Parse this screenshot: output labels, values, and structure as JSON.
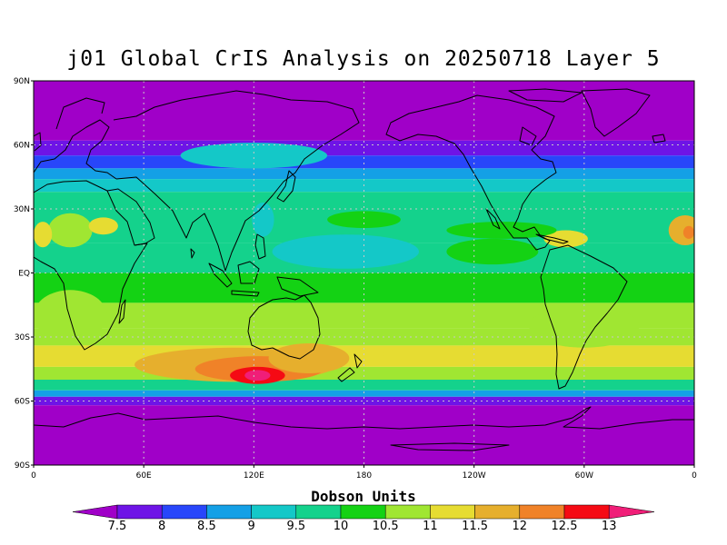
{
  "title": "j01 Global CrIS Analysis on 20250718 Layer 5",
  "colorbar": {
    "title": "Dobson Units",
    "levels": [
      "7.5",
      "8",
      "8.5",
      "9",
      "9.5",
      "10",
      "10.5",
      "11",
      "11.5",
      "12",
      "12.5",
      "13"
    ],
    "colors": [
      "#a000c8",
      "#6e14e6",
      "#2846fa",
      "#14a0e6",
      "#14c8c8",
      "#14d28c",
      "#14d214",
      "#a0e632",
      "#e6dc32",
      "#e6af2d",
      "#f08228",
      "#f50a14",
      "#f01e78"
    ]
  },
  "chart_data": {
    "type": "heatmap",
    "title": "j01 Global CrIS Analysis on 20250718 Layer 5",
    "units": "Dobson Units",
    "xlabel": "",
    "ylabel": "",
    "x_ticks": [
      "0",
      "60E",
      "120E",
      "180",
      "120W",
      "60W",
      "0"
    ],
    "y_ticks": [
      "90N",
      "60N",
      "30N",
      "EQ",
      "30S",
      "60S",
      "90S"
    ],
    "xlim": [
      0,
      360
    ],
    "ylim": [
      -90,
      90
    ],
    "grid": true,
    "bands": [
      {
        "lat_from": 90,
        "lat_to": 62,
        "value": 7.3
      },
      {
        "lat_from": 62,
        "lat_to": 55,
        "value": 7.9
      },
      {
        "lat_from": 55,
        "lat_to": 49,
        "value": 8.4
      },
      {
        "lat_from": 49,
        "lat_to": 44,
        "value": 8.9
      },
      {
        "lat_from": 44,
        "lat_to": 38,
        "value": 9.4
      },
      {
        "lat_from": 38,
        "lat_to": 30,
        "value": 9.8
      },
      {
        "lat_from": 30,
        "lat_to": 14,
        "value": 9.9
      },
      {
        "lat_from": 14,
        "lat_to": 0,
        "value": 9.7
      },
      {
        "lat_from": 0,
        "lat_to": -14,
        "value": 10.2
      },
      {
        "lat_from": -14,
        "lat_to": -26,
        "value": 10.6
      },
      {
        "lat_from": -26,
        "lat_to": -34,
        "value": 10.9
      },
      {
        "lat_from": -34,
        "lat_to": -44,
        "value": 11.2
      },
      {
        "lat_from": -44,
        "lat_to": -50,
        "value": 10.6
      },
      {
        "lat_from": -50,
        "lat_to": -55,
        "value": 9.6
      },
      {
        "lat_from": -55,
        "lat_to": -58,
        "value": 8.6
      },
      {
        "lat_from": -58,
        "lat_to": -62,
        "value": 7.9
      },
      {
        "lat_from": -62,
        "lat_to": -90,
        "value": 7.3
      }
    ],
    "features": [
      {
        "lon": 110,
        "lat": -43,
        "rlon": 55,
        "rlat": 8,
        "value": 11.7
      },
      {
        "lon": 123,
        "lat": -45,
        "rlon": 35,
        "rlat": 6,
        "value": 12.2
      },
      {
        "lon": 122,
        "lat": -48,
        "rlon": 15,
        "rlat": 4,
        "value": 12.7
      },
      {
        "lon": 122,
        "lat": -48,
        "rlon": 7,
        "rlat": 2.5,
        "value": 13.0
      },
      {
        "lon": 150,
        "lat": -40,
        "rlon": 22,
        "rlat": 7,
        "value": 11.7
      },
      {
        "lon": 20,
        "lat": 20,
        "rlon": 12,
        "rlat": 8,
        "value": 10.7
      },
      {
        "lon": 38,
        "lat": 22,
        "rlon": 8,
        "rlat": 4,
        "value": 11.2
      },
      {
        "lon": 5,
        "lat": 18,
        "rlon": 5,
        "rlat": 6,
        "value": 11.3
      },
      {
        "lon": 355,
        "lat": 20,
        "rlon": 9,
        "rlat": 7,
        "value": 11.7
      },
      {
        "lon": 357,
        "lat": 19,
        "rlon": 3,
        "rlat": 3,
        "value": 12.2
      },
      {
        "lon": 290,
        "lat": 16,
        "rlon": 12,
        "rlat": 4,
        "value": 11.3
      },
      {
        "lon": 250,
        "lat": 10,
        "rlon": 25,
        "rlat": 6,
        "value": 10.3
      },
      {
        "lon": 170,
        "lat": 10,
        "rlon": 40,
        "rlat": 8,
        "value": 9.3
      },
      {
        "lon": 180,
        "lat": 25,
        "rlon": 20,
        "rlat": 4,
        "value": 10.2
      },
      {
        "lon": 255,
        "lat": 20,
        "rlon": 30,
        "rlat": 4,
        "value": 10.2
      },
      {
        "lon": 120,
        "lat": 55,
        "rlon": 40,
        "rlat": 6,
        "value": 9.3
      },
      {
        "lon": 300,
        "lat": -25,
        "rlon": 30,
        "rlat": 10,
        "value": 10.5
      },
      {
        "lon": 20,
        "lat": -20,
        "rlon": 20,
        "rlat": 12,
        "value": 10.5
      },
      {
        "lon": 125,
        "lat": 25,
        "rlon": 6,
        "rlat": 8,
        "value": 9.3
      },
      {
        "lon": 30,
        "lat": -37,
        "rlon": 25,
        "rlat": 3,
        "value": 11.3
      },
      {
        "lon": 240,
        "lat": -38,
        "rlon": 50,
        "rlat": 4,
        "value": 11.0
      }
    ]
  }
}
